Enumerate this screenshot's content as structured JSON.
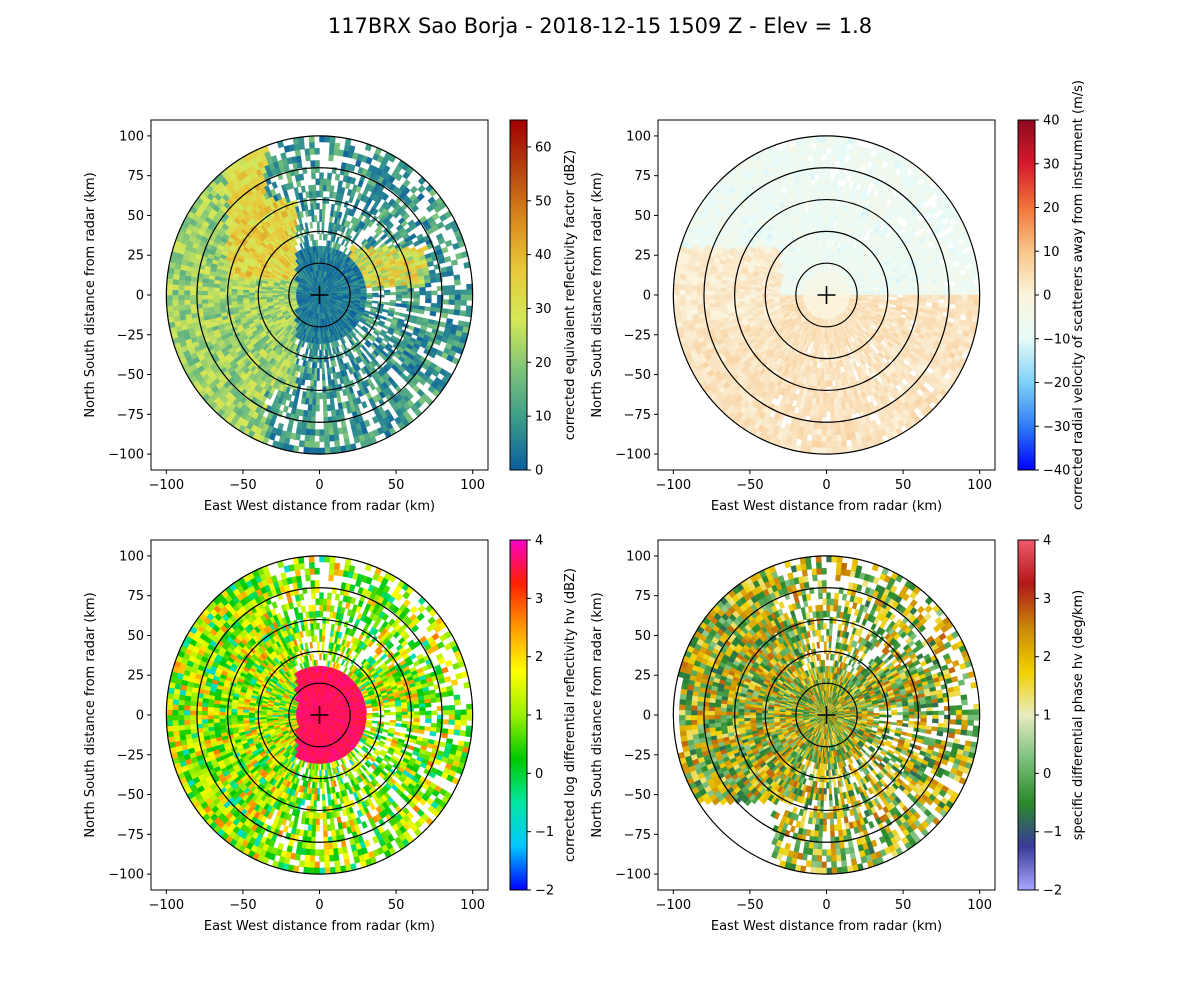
{
  "figure": {
    "title": "117BRX Sao Borja - 2018-12-15 1509 Z -  Elev = 1.8"
  },
  "chart_data": [
    {
      "type": "ppi-radar",
      "field": "reflectivity",
      "xlabel": "East West distance from radar (km)",
      "ylabel": "North South distance from radar (km)",
      "xlim": [
        -110,
        110
      ],
      "ylim": [
        -110,
        110
      ],
      "xticks": [
        -100,
        -50,
        0,
        50,
        100
      ],
      "yticks": [
        -100,
        -75,
        -50,
        -25,
        0,
        25,
        50,
        75,
        100
      ],
      "range_rings_km": [
        20,
        40,
        60,
        80,
        100
      ],
      "colorbar": {
        "label": "corrected equivalent reflectivity factor (dBZ)",
        "range": [
          0,
          65
        ],
        "ticks": [
          0,
          10,
          20,
          30,
          40,
          50,
          60
        ],
        "tick_labels": [
          "0",
          "10",
          "20",
          "30",
          "40",
          "50",
          "60"
        ],
        "colormap": [
          "#ffffff00",
          "#0b5f9f",
          "#3a9a8a",
          "#7ec47a",
          "#d4e858",
          "#e8c93a",
          "#d98a1e",
          "#b5430f",
          "#a10000"
        ]
      }
    },
    {
      "type": "ppi-radar",
      "field": "velocity",
      "xlabel": "East West distance from radar (km)",
      "ylabel": "North South distance from radar (km)",
      "xlim": [
        -110,
        110
      ],
      "ylim": [
        -110,
        110
      ],
      "xticks": [
        -100,
        -50,
        0,
        50,
        100
      ],
      "yticks": [
        -100,
        -75,
        -50,
        -25,
        0,
        25,
        50,
        75,
        100
      ],
      "range_rings_km": [
        20,
        40,
        60,
        80,
        100
      ],
      "colorbar": {
        "label": "corrected radial velocity of scatterers away from instrument (m/s)",
        "range": [
          -40,
          40
        ],
        "ticks": [
          -40,
          -30,
          -20,
          -10,
          0,
          10,
          20,
          30,
          40
        ],
        "tick_labels": [
          "−40",
          "−30",
          "−20",
          "−10",
          "0",
          "10",
          "20",
          "30",
          "40"
        ],
        "colormap": [
          "#0000ff",
          "#2f7df5",
          "#7fd0f7",
          "#e6fbf8",
          "#fbf4dc",
          "#f8c68a",
          "#f0743a",
          "#d41a2c",
          "#8c0a1e"
        ]
      }
    },
    {
      "type": "ppi-radar",
      "field": "differential_reflectivity",
      "xlabel": "East West distance from radar (km)",
      "ylabel": "North South distance from radar (km)",
      "xlim": [
        -110,
        110
      ],
      "ylim": [
        -110,
        110
      ],
      "xticks": [
        -100,
        -50,
        0,
        50,
        100
      ],
      "yticks": [
        -100,
        -75,
        -50,
        -25,
        0,
        25,
        50,
        75,
        100
      ],
      "range_rings_km": [
        20,
        40,
        60,
        80,
        100
      ],
      "colorbar": {
        "label": "corrected log differential reflectivity hv (dBZ)",
        "range": [
          -2,
          4
        ],
        "ticks": [
          -2,
          -1,
          0,
          1,
          2,
          3,
          4
        ],
        "tick_labels": [
          "−2",
          "−1",
          "0",
          "1",
          "2",
          "3",
          "4"
        ],
        "colormap": [
          "#0000ff",
          "#00c8ff",
          "#00e8a0",
          "#00c800",
          "#9cf000",
          "#ffff00",
          "#ff9a00",
          "#ff2000",
          "#ff00c8"
        ]
      }
    },
    {
      "type": "ppi-radar",
      "field": "specific_differential_phase",
      "xlabel": "East West distance from radar (km)",
      "ylabel": "North South distance from radar (km)",
      "xlim": [
        -110,
        110
      ],
      "ylim": [
        -110,
        110
      ],
      "xticks": [
        -100,
        -50,
        0,
        50,
        100
      ],
      "yticks": [
        -100,
        -75,
        -50,
        -25,
        0,
        25,
        50,
        75,
        100
      ],
      "range_rings_km": [
        20,
        40,
        60,
        80,
        100
      ],
      "colorbar": {
        "label": "specific differential phase hv (deg/km)",
        "range": [
          -2,
          4
        ],
        "ticks": [
          -2,
          -1,
          0,
          1,
          2,
          3,
          4
        ],
        "tick_labels": [
          "−2",
          "−1",
          "0",
          "1",
          "2",
          "3",
          "4"
        ],
        "colormap": [
          "#a8a8ff",
          "#3a3a9a",
          "#2a8a2a",
          "#7cc07c",
          "#e8ecc0",
          "#f0d000",
          "#c8860a",
          "#b01818",
          "#f05a6a"
        ]
      }
    }
  ]
}
